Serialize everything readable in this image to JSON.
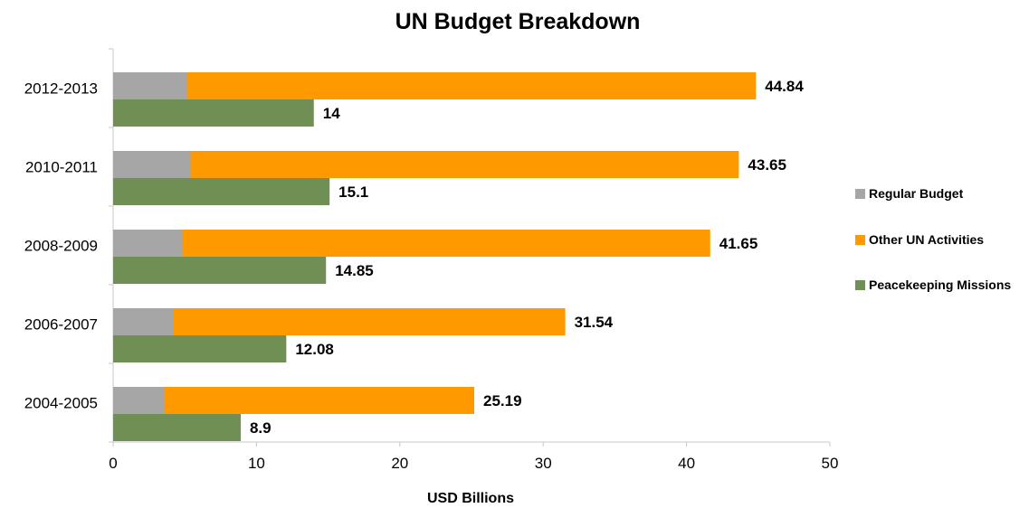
{
  "chart_data": {
    "type": "bar",
    "orientation": "horizontal",
    "title": "UN Budget Breakdown",
    "xlabel": "USD Billions",
    "ylabel": "",
    "xlim": [
      0,
      50
    ],
    "xticks": [
      "0",
      "10",
      "20",
      "30",
      "40",
      "50"
    ],
    "grid": false,
    "legend_position": "right",
    "categories": [
      "2012-2013",
      "2010-2011",
      "2008-2009",
      "2006-2007",
      "2004-2005"
    ],
    "series": [
      {
        "name": "Regular Budget",
        "color": "#a6a6a6",
        "values": [
          5.15,
          5.4,
          4.8,
          4.17,
          3.6
        ]
      },
      {
        "name": "Other UN Activities",
        "color": "#ff9900",
        "values": [
          44.84,
          43.65,
          41.65,
          31.54,
          25.19
        ]
      },
      {
        "name": "Peacekeeping Missions",
        "color": "#6f8f55",
        "values": [
          14,
          15.1,
          14.85,
          12.08,
          8.9
        ]
      }
    ],
    "data_labels": {
      "Other UN Activities": [
        "44.84",
        "43.65",
        "41.65",
        "31.54",
        "25.19"
      ],
      "Peacekeeping Missions": [
        "14",
        "15.1",
        "14.85",
        "12.08",
        "8.9"
      ]
    }
  }
}
